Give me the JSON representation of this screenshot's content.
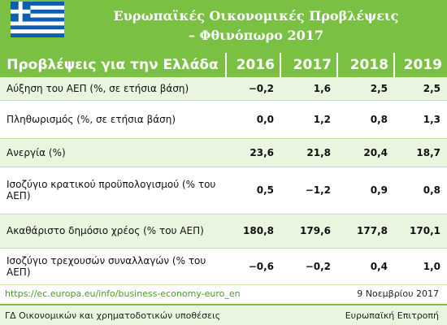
{
  "header": {
    "title": [
      "Ευρωπαϊκές Οικονομικές Προβλέψεις",
      "– Φθινόπωρο 2017"
    ]
  },
  "table": {
    "columns": [
      "Προβλέψεις για την Ελλάδα",
      "2016",
      "2017",
      "2018",
      "2019"
    ],
    "rows": [
      [
        "Αύξηση του ΑΕΠ (%, σε ετήσια βάση)",
        "−0,2",
        "1,6",
        "2,5",
        "2,5"
      ],
      [
        "Πληθωρισμός (%, σε ετήσια βάση)",
        "0,0",
        "1,2",
        "0,8",
        "1,3"
      ],
      [
        "Ανεργία (%)",
        "23,6",
        "21,8",
        "20,4",
        "18,7"
      ],
      [
        "Ισοζύγιο κρατικού προϋπολογισμού (% του ΑΕΠ)",
        "0,5",
        "−1,2",
        "0,9",
        "0,8"
      ],
      [
        "Ακαθάριστο δημόσιο χρέος (% του ΑΕΠ)",
        "180,8",
        "179,6",
        "177,8",
        "170,1"
      ],
      [
        "Ισοζύγιο τρεχουσών συναλλαγών (% του ΑΕΠ)",
        "−0,6",
        "−0,2",
        "0,4",
        "1,0"
      ]
    ]
  },
  "footer": {
    "link": "https://ec.europa.eu/info/business-economy-euro_en",
    "date": "9 Νοεμβρίου 2017",
    "left": "ΓΔ Οικονομικών και χρηματοδοτικών υποθέσεις",
    "right": "Ευρωπαϊκή Επιτροπή"
  }
}
